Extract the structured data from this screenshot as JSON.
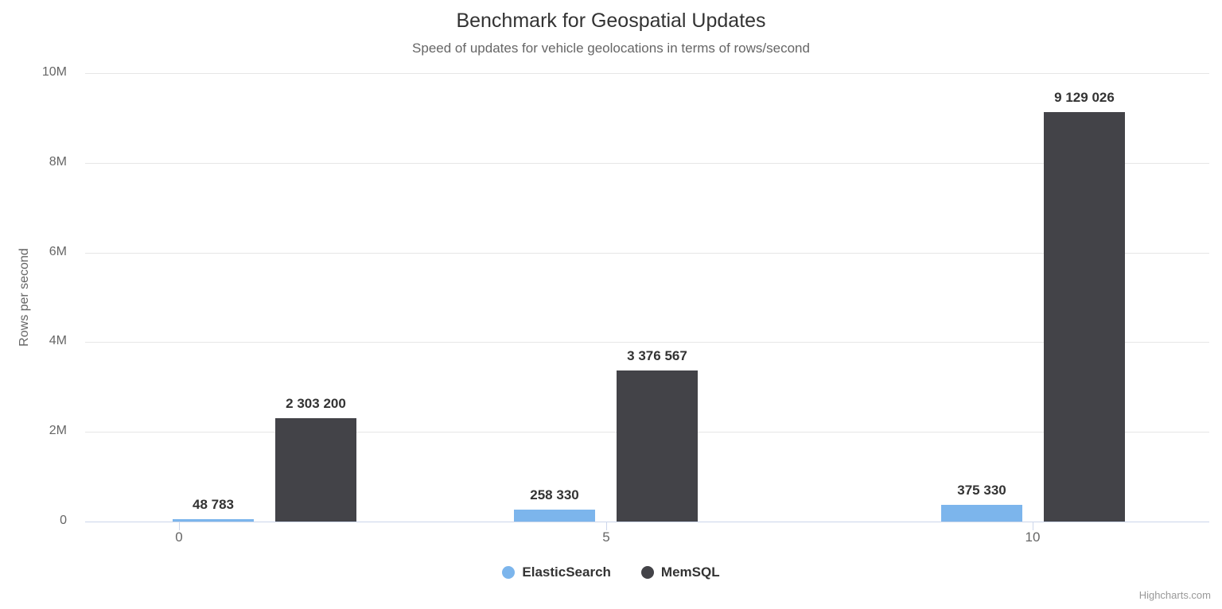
{
  "chart_data": {
    "type": "bar",
    "title": "Benchmark for Geospatial Updates",
    "subtitle": "Speed of updates for vehicle geolocations in terms of rows/second",
    "xlabel": "",
    "ylabel": "Rows per second",
    "ylim": [
      0,
      10000000
    ],
    "grid": true,
    "legend_position": "bottom",
    "yticks": [
      {
        "value": 0,
        "label": "0"
      },
      {
        "value": 2000000,
        "label": "2M"
      },
      {
        "value": 4000000,
        "label": "4M"
      },
      {
        "value": 6000000,
        "label": "6M"
      },
      {
        "value": 8000000,
        "label": "8M"
      },
      {
        "value": 10000000,
        "label": "10M"
      }
    ],
    "xticks": [
      {
        "value": 0,
        "label": "0"
      },
      {
        "value": 5,
        "label": "5"
      },
      {
        "value": 10,
        "label": "10"
      }
    ],
    "series": [
      {
        "name": "ElasticSearch",
        "color": "#7cb5ec",
        "points": [
          {
            "x": 1,
            "y": 48783,
            "label": "48 783"
          },
          {
            "x": 5,
            "y": 258330,
            "label": "258 330"
          },
          {
            "x": 10,
            "y": 375330,
            "label": "375 330"
          }
        ]
      },
      {
        "name": "MemSQL",
        "color": "#434348",
        "points": [
          {
            "x": 1,
            "y": 2303200,
            "label": "2 303 200"
          },
          {
            "x": 5,
            "y": 3376567,
            "label": "3 376 567"
          },
          {
            "x": 10,
            "y": 9129026,
            "label": "9 129 026"
          }
        ]
      }
    ]
  },
  "credits": "Highcharts.com"
}
